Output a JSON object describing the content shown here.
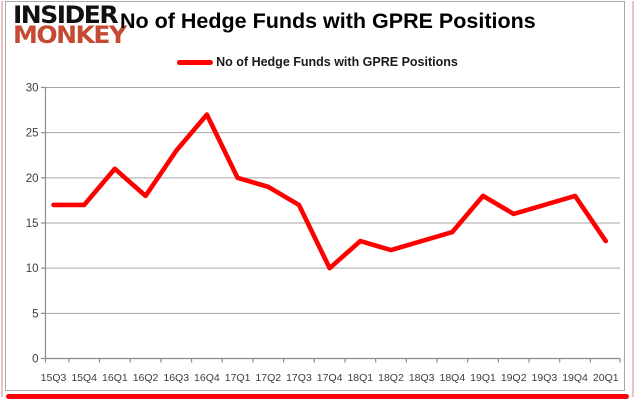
{
  "logo": {
    "line1": "INSIDER",
    "line2": "MONKEY",
    "line2_color": "#c64934"
  },
  "header": {
    "title": "No of Hedge Funds with GPRE Positions"
  },
  "legend": {
    "label": "No of Hedge Funds with GPRE Positions",
    "line_color": "#ff0000"
  },
  "frame": {
    "bottom_bar_color": "#fb0007"
  },
  "chart_data": {
    "type": "line",
    "title": "No of Hedge Funds with GPRE Positions",
    "categories": [
      "15Q3",
      "15Q4",
      "16Q1",
      "16Q2",
      "16Q3",
      "16Q4",
      "17Q1",
      "17Q2",
      "17Q3",
      "17Q4",
      "18Q1",
      "18Q2",
      "18Q3",
      "18Q4",
      "19Q1",
      "19Q2",
      "19Q3",
      "19Q4",
      "20Q1"
    ],
    "series": [
      {
        "name": "No of Hedge Funds with GPRE Positions",
        "color": "#ff0000",
        "values": [
          17,
          17,
          21,
          18,
          23,
          27,
          20,
          19,
          17,
          10,
          13,
          12,
          13,
          14,
          18,
          16,
          17,
          18,
          13
        ]
      }
    ],
    "xlabel": "",
    "ylabel": "",
    "ylim": [
      0,
      30
    ],
    "ytick_step": 5,
    "yticks": [
      0,
      5,
      10,
      15,
      20,
      25,
      30
    ],
    "grid": "horizontal",
    "gridline_color": "#a6a6a6",
    "axis_color": "#8c8c8c",
    "tick_label_color": "#3d3d3d",
    "legend_position": "top-center"
  }
}
